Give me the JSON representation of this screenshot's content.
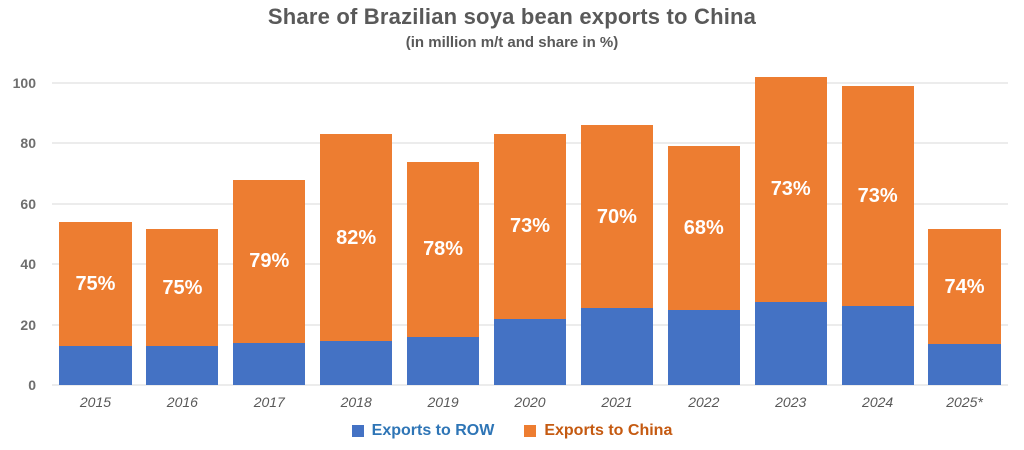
{
  "title": "Share of Brazilian soya bean exports to China",
  "subtitle": "(in million m/t and share in %)",
  "colors": {
    "row_bar": "#4472C4",
    "china_bar": "#ED7D31",
    "legend_row_text": "#2E75B6",
    "legend_china_text": "#C55A11",
    "title_text": "#595959",
    "axis_text": "#6E6E6E",
    "gridline": "#D9D9D9"
  },
  "chart_data": {
    "type": "bar",
    "stacked": true,
    "title": "Share of Brazilian soya bean exports to China",
    "subtitle": "(in million m/t and share in %)",
    "categories": [
      "2015",
      "2016",
      "2017",
      "2018",
      "2019",
      "2020",
      "2021",
      "2022",
      "2023",
      "2024",
      "2025*"
    ],
    "series": [
      {
        "name": "Exports to ROW",
        "color": "#4472C4",
        "values": [
          13,
          13,
          14,
          14.5,
          16,
          22,
          25.5,
          25,
          27.5,
          26,
          13.5
        ]
      },
      {
        "name": "Exports to China",
        "color": "#ED7D31",
        "values": [
          41,
          38.5,
          54,
          68.5,
          58,
          61,
          60.5,
          54,
          74.5,
          73,
          38
        ]
      }
    ],
    "totals": [
      54,
      51.5,
      68,
      83,
      74,
      83,
      86,
      79,
      102,
      99,
      51.5
    ],
    "bar_labels": [
      "75%",
      "75%",
      "79%",
      "82%",
      "78%",
      "73%",
      "70%",
      "68%",
      "73%",
      "73%",
      "74%"
    ],
    "xlabel": "",
    "ylabel": "",
    "ylim": [
      0,
      100
    ],
    "yticks": [
      0,
      20,
      40,
      60,
      80,
      100
    ],
    "grid": true,
    "legend_position": "bottom"
  },
  "legend": {
    "items": [
      {
        "label": "Exports to ROW",
        "swatch_color": "#4472C4",
        "text_color": "#2E75B6"
      },
      {
        "label": "Exports to China",
        "swatch_color": "#ED7D31",
        "text_color": "#C55A11"
      }
    ]
  }
}
